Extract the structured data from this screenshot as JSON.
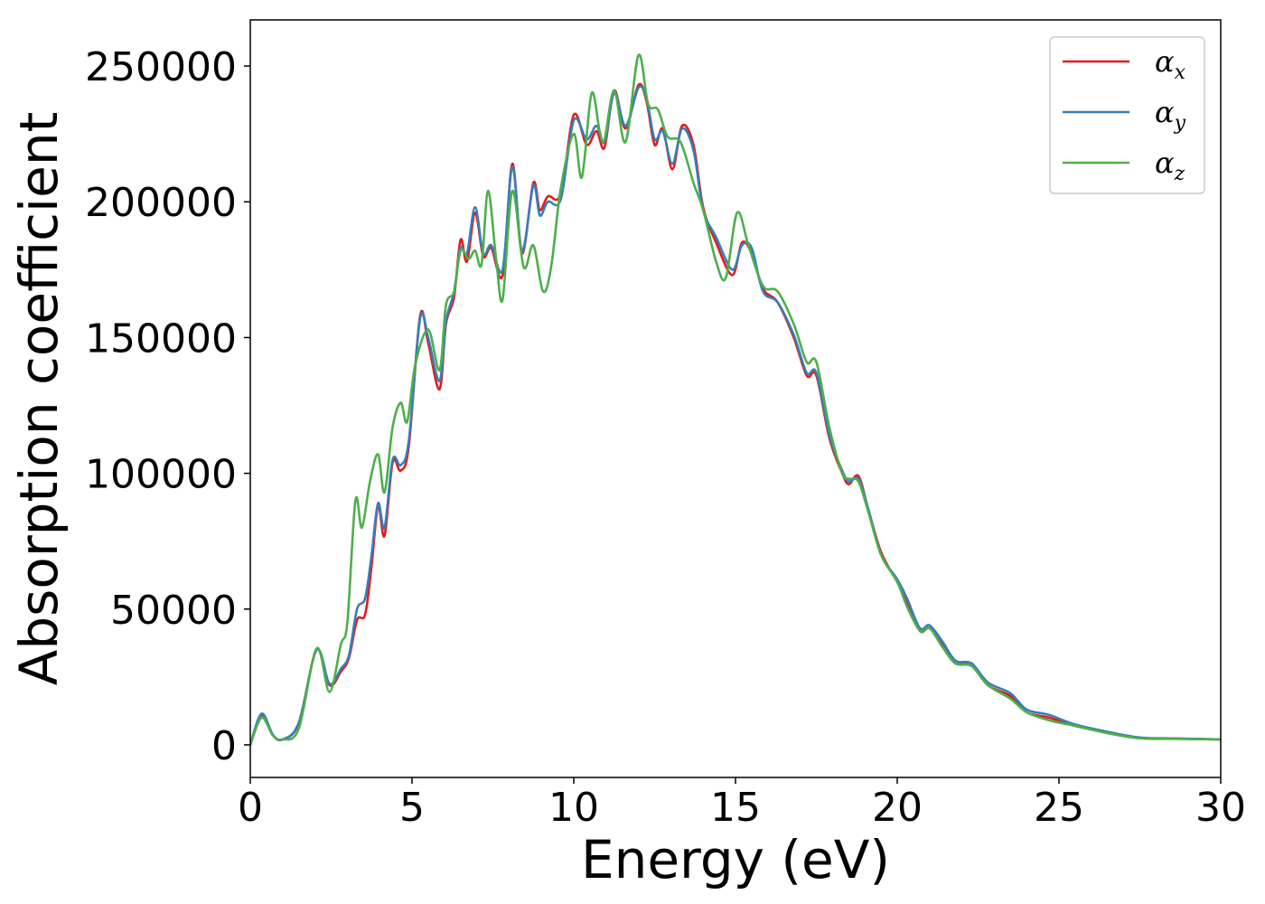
{
  "chart_data": {
    "type": "line",
    "title": "",
    "xlabel": "Energy (eV)",
    "ylabel": "Absorption coefficient",
    "xlim": [
      0,
      30
    ],
    "ylim": [
      -12000,
      267000
    ],
    "xticks": [
      0,
      5,
      10,
      15,
      20,
      25,
      30
    ],
    "xtick_labels": [
      "0",
      "5",
      "10",
      "15",
      "20",
      "25",
      "30"
    ],
    "yticks": [
      0,
      50000,
      100000,
      150000,
      200000,
      250000
    ],
    "ytick_labels": [
      "0",
      "50000",
      "100000",
      "150000",
      "200000",
      "250000"
    ],
    "grid": false,
    "legend_position": "top-right",
    "series": [
      {
        "name": "α_x",
        "label_base": "α",
        "label_sub": "x",
        "color": "#e41a1c",
        "points": [
          [
            0,
            0
          ],
          [
            0.35,
            11000
          ],
          [
            0.7,
            3500
          ],
          [
            1.0,
            2000
          ],
          [
            1.5,
            8000
          ],
          [
            2.05,
            35000
          ],
          [
            2.45,
            22000
          ],
          [
            2.8,
            27000
          ],
          [
            3.05,
            32000
          ],
          [
            3.3,
            46000
          ],
          [
            3.55,
            48000
          ],
          [
            3.75,
            66000
          ],
          [
            3.95,
            88000
          ],
          [
            4.15,
            77000
          ],
          [
            4.4,
            104000
          ],
          [
            4.65,
            101000
          ],
          [
            4.9,
            110000
          ],
          [
            5.25,
            158000
          ],
          [
            5.5,
            148000
          ],
          [
            5.85,
            131000
          ],
          [
            6.05,
            155000
          ],
          [
            6.3,
            165000
          ],
          [
            6.5,
            186000
          ],
          [
            6.7,
            178000
          ],
          [
            6.95,
            196000
          ],
          [
            7.2,
            180000
          ],
          [
            7.45,
            183000
          ],
          [
            7.8,
            173000
          ],
          [
            8.1,
            214000
          ],
          [
            8.4,
            181000
          ],
          [
            8.75,
            207000
          ],
          [
            8.95,
            197000
          ],
          [
            9.2,
            202000
          ],
          [
            9.6,
            203000
          ],
          [
            10.0,
            232000
          ],
          [
            10.4,
            221000
          ],
          [
            10.7,
            226000
          ],
          [
            10.95,
            220000
          ],
          [
            11.25,
            241000
          ],
          [
            11.6,
            227000
          ],
          [
            12.0,
            243000
          ],
          [
            12.25,
            237000
          ],
          [
            12.5,
            221000
          ],
          [
            12.75,
            227000
          ],
          [
            13.05,
            212000
          ],
          [
            13.35,
            228000
          ],
          [
            13.7,
            221000
          ],
          [
            14.0,
            198000
          ],
          [
            14.4,
            185000
          ],
          [
            14.9,
            173000
          ],
          [
            15.2,
            185000
          ],
          [
            15.5,
            181000
          ],
          [
            15.85,
            168000
          ],
          [
            16.3,
            163000
          ],
          [
            16.8,
            150000
          ],
          [
            17.2,
            136000
          ],
          [
            17.5,
            136000
          ],
          [
            17.9,
            113000
          ],
          [
            18.3,
            100000
          ],
          [
            18.5,
            96000
          ],
          [
            18.8,
            99000
          ],
          [
            19.1,
            87000
          ],
          [
            19.5,
            71000
          ],
          [
            20.0,
            60000
          ],
          [
            20.3,
            53000
          ],
          [
            20.7,
            42000
          ],
          [
            21.0,
            43000
          ],
          [
            21.4,
            37000
          ],
          [
            21.8,
            30000
          ],
          [
            22.3,
            30000
          ],
          [
            22.8,
            22000
          ],
          [
            23.5,
            18000
          ],
          [
            24.0,
            12000
          ],
          [
            24.7,
            10000
          ],
          [
            25.5,
            7000
          ],
          [
            26.5,
            4500
          ],
          [
            27.5,
            2500
          ],
          [
            28.5,
            2300
          ],
          [
            30,
            2000
          ]
        ]
      },
      {
        "name": "α_y",
        "label_base": "α",
        "label_sub": "y",
        "color": "#377eb8",
        "points": [
          [
            0,
            0
          ],
          [
            0.35,
            11500
          ],
          [
            0.7,
            3700
          ],
          [
            1.0,
            2000
          ],
          [
            1.5,
            8200
          ],
          [
            2.05,
            35000
          ],
          [
            2.45,
            22500
          ],
          [
            2.8,
            28000
          ],
          [
            3.05,
            33000
          ],
          [
            3.3,
            50000
          ],
          [
            3.55,
            54000
          ],
          [
            3.75,
            70000
          ],
          [
            3.95,
            89000
          ],
          [
            4.15,
            80000
          ],
          [
            4.4,
            105000
          ],
          [
            4.65,
            103000
          ],
          [
            4.9,
            112000
          ],
          [
            5.25,
            157000
          ],
          [
            5.5,
            150000
          ],
          [
            5.85,
            134000
          ],
          [
            6.05,
            156000
          ],
          [
            6.3,
            167000
          ],
          [
            6.5,
            183000
          ],
          [
            6.7,
            181000
          ],
          [
            6.95,
            198000
          ],
          [
            7.2,
            181000
          ],
          [
            7.45,
            184000
          ],
          [
            7.8,
            175000
          ],
          [
            8.1,
            213000
          ],
          [
            8.4,
            182000
          ],
          [
            8.75,
            206000
          ],
          [
            8.95,
            195000
          ],
          [
            9.2,
            200000
          ],
          [
            9.6,
            201000
          ],
          [
            10.0,
            230000
          ],
          [
            10.4,
            223000
          ],
          [
            10.7,
            228000
          ],
          [
            10.95,
            222000
          ],
          [
            11.25,
            240000
          ],
          [
            11.6,
            228000
          ],
          [
            12.0,
            242000
          ],
          [
            12.25,
            238000
          ],
          [
            12.5,
            223000
          ],
          [
            12.75,
            226000
          ],
          [
            13.05,
            214000
          ],
          [
            13.35,
            227000
          ],
          [
            13.7,
            219000
          ],
          [
            14.0,
            197000
          ],
          [
            14.4,
            187000
          ],
          [
            14.9,
            175000
          ],
          [
            15.2,
            184000
          ],
          [
            15.5,
            183000
          ],
          [
            15.85,
            167000
          ],
          [
            16.3,
            163000
          ],
          [
            16.8,
            151000
          ],
          [
            17.2,
            137000
          ],
          [
            17.5,
            137000
          ],
          [
            17.9,
            114000
          ],
          [
            18.3,
            101000
          ],
          [
            18.5,
            97000
          ],
          [
            18.8,
            98000
          ],
          [
            19.1,
            87000
          ],
          [
            19.5,
            70000
          ],
          [
            20.0,
            61000
          ],
          [
            20.3,
            54000
          ],
          [
            20.7,
            43000
          ],
          [
            21.0,
            44000
          ],
          [
            21.4,
            38000
          ],
          [
            21.8,
            31000
          ],
          [
            22.3,
            30000
          ],
          [
            22.8,
            23000
          ],
          [
            23.5,
            19000
          ],
          [
            24.0,
            13000
          ],
          [
            24.7,
            11000
          ],
          [
            25.5,
            7500
          ],
          [
            26.5,
            4800
          ],
          [
            27.5,
            2700
          ],
          [
            28.5,
            2400
          ],
          [
            30,
            2000
          ]
        ]
      },
      {
        "name": "α_z",
        "label_base": "α",
        "label_sub": "z",
        "color": "#4daf4a",
        "points": [
          [
            0,
            0
          ],
          [
            0.35,
            10000
          ],
          [
            0.7,
            3500
          ],
          [
            1.0,
            2000
          ],
          [
            1.5,
            6000
          ],
          [
            2.05,
            35500
          ],
          [
            2.45,
            19500
          ],
          [
            2.8,
            37000
          ],
          [
            3.0,
            45000
          ],
          [
            3.25,
            90000
          ],
          [
            3.45,
            80000
          ],
          [
            3.7,
            97000
          ],
          [
            3.95,
            107000
          ],
          [
            4.15,
            93000
          ],
          [
            4.4,
            117000
          ],
          [
            4.65,
            126000
          ],
          [
            4.85,
            119000
          ],
          [
            5.1,
            140000
          ],
          [
            5.5,
            153000
          ],
          [
            5.85,
            138000
          ],
          [
            6.05,
            162000
          ],
          [
            6.3,
            167000
          ],
          [
            6.5,
            182000
          ],
          [
            6.75,
            179000
          ],
          [
            6.95,
            182000
          ],
          [
            7.15,
            177000
          ],
          [
            7.35,
            204000
          ],
          [
            7.6,
            179000
          ],
          [
            7.8,
            164000
          ],
          [
            8.1,
            204000
          ],
          [
            8.45,
            176000
          ],
          [
            8.75,
            184000
          ],
          [
            9.05,
            167000
          ],
          [
            9.3,
            176000
          ],
          [
            9.6,
            205000
          ],
          [
            10.0,
            225000
          ],
          [
            10.25,
            209000
          ],
          [
            10.55,
            240000
          ],
          [
            10.8,
            226000
          ],
          [
            10.95,
            223000
          ],
          [
            11.25,
            241000
          ],
          [
            11.6,
            222000
          ],
          [
            12.0,
            254000
          ],
          [
            12.3,
            236000
          ],
          [
            12.6,
            234000
          ],
          [
            12.9,
            224000
          ],
          [
            13.3,
            222000
          ],
          [
            13.7,
            207000
          ],
          [
            14.0,
            197000
          ],
          [
            14.4,
            178000
          ],
          [
            14.7,
            172000
          ],
          [
            15.05,
            196000
          ],
          [
            15.4,
            184000
          ],
          [
            15.85,
            169000
          ],
          [
            16.3,
            167000
          ],
          [
            16.8,
            155000
          ],
          [
            17.2,
            141000
          ],
          [
            17.5,
            141000
          ],
          [
            17.9,
            117000
          ],
          [
            18.3,
            100000
          ],
          [
            18.5,
            98000
          ],
          [
            18.8,
            97000
          ],
          [
            19.1,
            86000
          ],
          [
            19.5,
            70000
          ],
          [
            20.0,
            60000
          ],
          [
            20.3,
            51000
          ],
          [
            20.7,
            42000
          ],
          [
            21.0,
            43000
          ],
          [
            21.4,
            36000
          ],
          [
            21.8,
            30000
          ],
          [
            22.3,
            29000
          ],
          [
            22.8,
            22000
          ],
          [
            23.5,
            17000
          ],
          [
            24.0,
            12000
          ],
          [
            24.7,
            9000
          ],
          [
            25.5,
            7000
          ],
          [
            26.5,
            4300
          ],
          [
            27.5,
            2400
          ],
          [
            28.5,
            2200
          ],
          [
            30,
            2000
          ]
        ]
      }
    ]
  }
}
